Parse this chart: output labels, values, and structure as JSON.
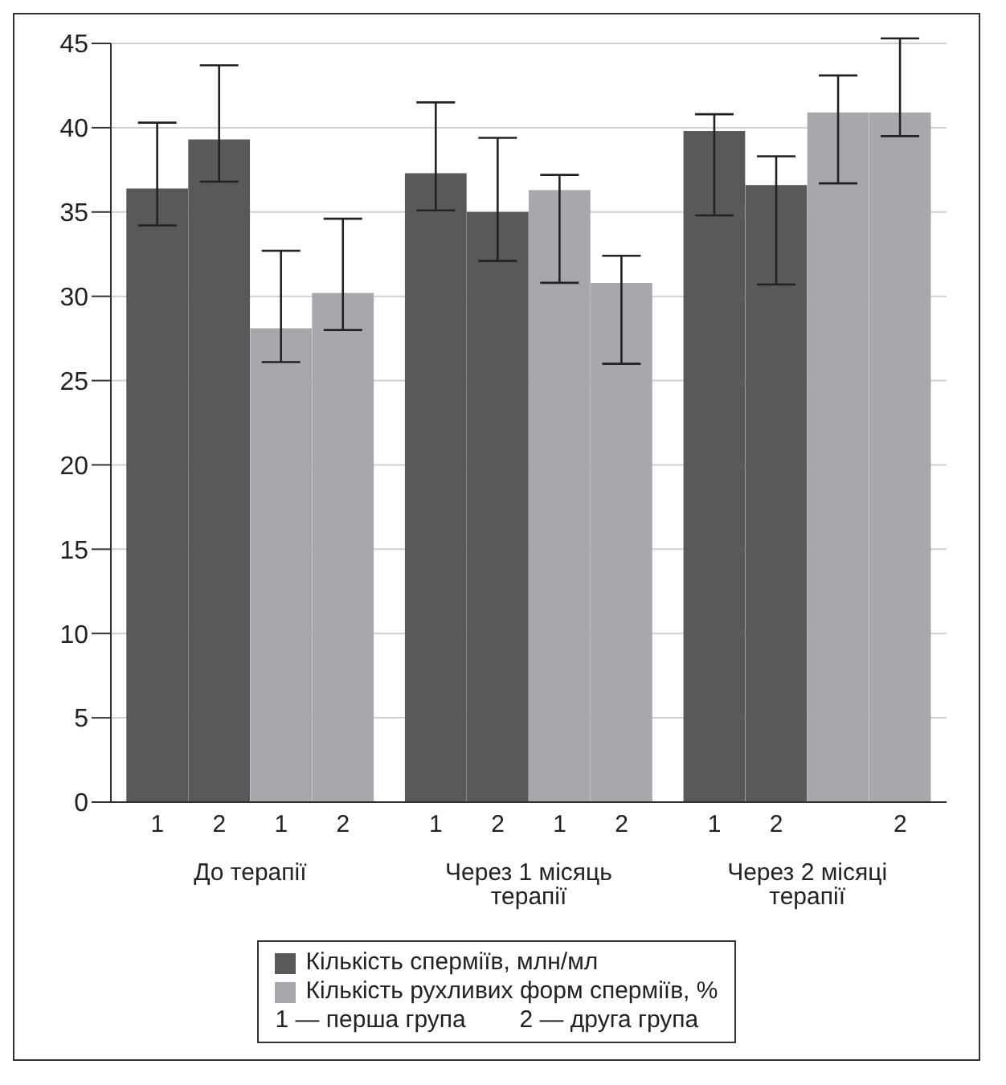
{
  "chart_data": {
    "type": "bar",
    "categories": [
      "1",
      "2",
      "1",
      "2",
      "1",
      "2",
      "1",
      "2",
      "1",
      "2",
      null,
      "2"
    ],
    "series": [
      {
        "name": "Кількість сперміїв, млн/мл",
        "color": "#58595b",
        "values": [
          36.4,
          39.3,
          null,
          null,
          37.3,
          35.0,
          null,
          null,
          39.8,
          36.6,
          null,
          null
        ],
        "errors": [
          [
            34.2,
            40.3
          ],
          [
            36.8,
            43.7
          ],
          null,
          null,
          [
            35.1,
            41.5
          ],
          [
            32.1,
            39.4
          ],
          null,
          null,
          [
            34.8,
            40.8
          ],
          [
            30.7,
            38.3
          ],
          null,
          null
        ]
      },
      {
        "name": "Кількість рухливих форм сперміїв, %",
        "color": "#a7a8ab",
        "values": [
          null,
          null,
          28.1,
          30.2,
          null,
          null,
          36.3,
          30.8,
          null,
          null,
          40.9,
          40.9
        ],
        "errors": [
          null,
          null,
          [
            26.1,
            32.7
          ],
          [
            28.0,
            34.6
          ],
          null,
          null,
          [
            30.8,
            37.2
          ],
          [
            26.0,
            32.4
          ],
          null,
          null,
          [
            36.7,
            43.1
          ],
          [
            39.5,
            45.3
          ]
        ]
      }
    ],
    "annotations": [
      "До терапії",
      "Через 1 місяць терапії",
      "Через 2 місяці терапії",
      "1 — перша група        2 — друга група"
    ],
    "ylim": [
      0,
      45
    ],
    "yticks": [
      0,
      5,
      10,
      15,
      20,
      25,
      30,
      35,
      40,
      45
    ],
    "grid": "y",
    "legend": "bottom"
  }
}
